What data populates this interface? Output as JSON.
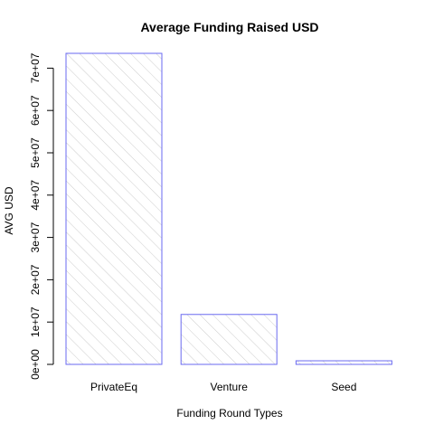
{
  "chart_data": {
    "type": "bar",
    "title": "Average Funding Raised USD",
    "xlabel": "Funding Round Types",
    "ylabel": "AVG USD",
    "categories": [
      "PrivateEq",
      "Venture",
      "Seed"
    ],
    "values": [
      73500000,
      11800000,
      850000
    ],
    "ylim": [
      0,
      73500000
    ],
    "yticks": [
      0,
      10000000,
      20000000,
      30000000,
      40000000,
      50000000,
      60000000,
      70000000
    ],
    "ytick_labels": [
      "0e+00",
      "1e+07",
      "2e+07",
      "3e+07",
      "4e+07",
      "5e+07",
      "6e+07",
      "7e+07"
    ],
    "bar_border_color": "#6a6af0",
    "bar_fill": "diagonal-hatch",
    "hatch_color": "#cccccc",
    "grid": false,
    "legend": "none"
  }
}
